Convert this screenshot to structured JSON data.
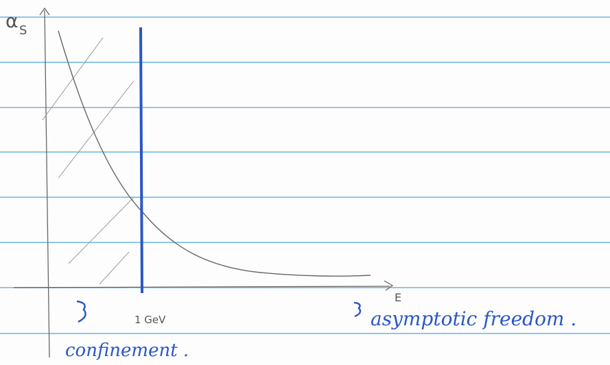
{
  "axis_labels": {
    "y": "α",
    "y_sub": "S",
    "x": "E"
  },
  "annotations": {
    "scale": "1 GeV",
    "left_region": "confinement .",
    "right_region": "asymptotic freedom ."
  }
}
